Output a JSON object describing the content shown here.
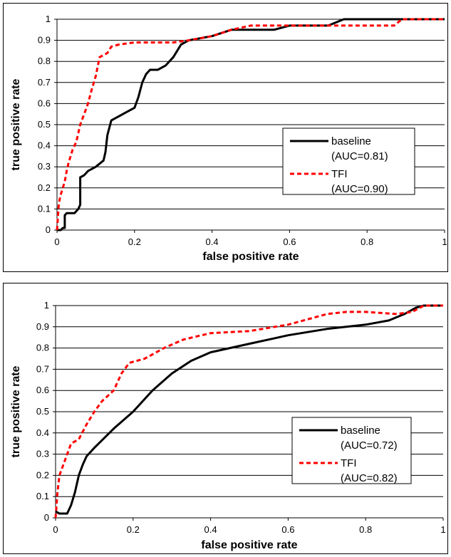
{
  "chart_data": [
    {
      "type": "line",
      "xlabel": "false positive rate",
      "ylabel": "true positive rate",
      "xlim": [
        0,
        1
      ],
      "ylim": [
        0,
        1
      ],
      "xticks": [
        "0",
        "0.2",
        "0.4",
        "0.6",
        "0.8",
        "1"
      ],
      "yticks": [
        "0",
        "0.1",
        "0.2",
        "0.3",
        "0.4",
        "0.5",
        "0.6",
        "0.7",
        "0.8",
        "0.9",
        "1"
      ],
      "grid": "horizontal",
      "legend_position": "right",
      "series": [
        {
          "name": "baseline",
          "annotation": "(AUC=0.81)",
          "color": "#000000",
          "style": "solid",
          "points": [
            [
              0,
              0
            ],
            [
              0.01,
              0
            ],
            [
              0.015,
              0.01
            ],
            [
              0.02,
              0.01
            ],
            [
              0.02,
              0.07
            ],
            [
              0.025,
              0.08
            ],
            [
              0.035,
              0.08
            ],
            [
              0.045,
              0.08
            ],
            [
              0.05,
              0.09
            ],
            [
              0.055,
              0.1
            ],
            [
              0.06,
              0.12
            ],
            [
              0.06,
              0.25
            ],
            [
              0.07,
              0.26
            ],
            [
              0.08,
              0.28
            ],
            [
              0.1,
              0.3
            ],
            [
              0.12,
              0.33
            ],
            [
              0.125,
              0.37
            ],
            [
              0.13,
              0.45
            ],
            [
              0.14,
              0.52
            ],
            [
              0.16,
              0.54
            ],
            [
              0.18,
              0.56
            ],
            [
              0.2,
              0.58
            ],
            [
              0.21,
              0.63
            ],
            [
              0.22,
              0.7
            ],
            [
              0.23,
              0.74
            ],
            [
              0.24,
              0.76
            ],
            [
              0.26,
              0.76
            ],
            [
              0.28,
              0.78
            ],
            [
              0.3,
              0.82
            ],
            [
              0.32,
              0.88
            ],
            [
              0.34,
              0.9
            ],
            [
              0.4,
              0.92
            ],
            [
              0.45,
              0.95
            ],
            [
              0.5,
              0.95
            ],
            [
              0.56,
              0.95
            ],
            [
              0.6,
              0.97
            ],
            [
              0.65,
              0.97
            ],
            [
              0.7,
              0.97
            ],
            [
              0.74,
              1
            ],
            [
              0.8,
              1
            ],
            [
              1,
              1
            ]
          ]
        },
        {
          "name": "TFI",
          "annotation": "(AUC=0.90)",
          "color": "#ff0000",
          "style": "dashed",
          "points": [
            [
              0,
              0
            ],
            [
              0.005,
              0.13
            ],
            [
              0.01,
              0.17
            ],
            [
              0.015,
              0.2
            ],
            [
              0.02,
              0.23
            ],
            [
              0.025,
              0.28
            ],
            [
              0.03,
              0.32
            ],
            [
              0.04,
              0.38
            ],
            [
              0.05,
              0.42
            ],
            [
              0.06,
              0.5
            ],
            [
              0.07,
              0.55
            ],
            [
              0.08,
              0.6
            ],
            [
              0.09,
              0.67
            ],
            [
              0.1,
              0.73
            ],
            [
              0.11,
              0.82
            ],
            [
              0.12,
              0.83
            ],
            [
              0.13,
              0.84
            ],
            [
              0.14,
              0.87
            ],
            [
              0.16,
              0.88
            ],
            [
              0.2,
              0.89
            ],
            [
              0.25,
              0.89
            ],
            [
              0.3,
              0.89
            ],
            [
              0.34,
              0.9
            ],
            [
              0.4,
              0.92
            ],
            [
              0.45,
              0.95
            ],
            [
              0.5,
              0.97
            ],
            [
              0.6,
              0.97
            ],
            [
              0.7,
              0.97
            ],
            [
              0.75,
              0.97
            ],
            [
              0.8,
              0.97
            ],
            [
              0.87,
              0.97
            ],
            [
              0.89,
              1
            ],
            [
              1,
              1
            ]
          ]
        }
      ]
    },
    {
      "type": "line",
      "xlabel": "false positive rate",
      "ylabel": "true positive rate",
      "xlim": [
        0,
        1
      ],
      "ylim": [
        0,
        1
      ],
      "xticks": [
        "0",
        "0.2",
        "0.4",
        "0.6",
        "0.8",
        "1"
      ],
      "yticks": [
        "0",
        "0.1",
        "0.2",
        "0.3",
        "0.4",
        "0.5",
        "0.6",
        "0.7",
        "0.8",
        "0.9",
        "1"
      ],
      "grid": "horizontal",
      "legend_position": "right",
      "series": [
        {
          "name": "baseline",
          "annotation": "(AUC=0.72)",
          "color": "#000000",
          "style": "solid",
          "points": [
            [
              0,
              0.03
            ],
            [
              0.01,
              0.02
            ],
            [
              0.02,
              0.02
            ],
            [
              0.03,
              0.02
            ],
            [
              0.04,
              0.06
            ],
            [
              0.05,
              0.12
            ],
            [
              0.06,
              0.2
            ],
            [
              0.07,
              0.25
            ],
            [
              0.08,
              0.29
            ],
            [
              0.09,
              0.31
            ],
            [
              0.1,
              0.33
            ],
            [
              0.15,
              0.42
            ],
            [
              0.2,
              0.5
            ],
            [
              0.25,
              0.6
            ],
            [
              0.3,
              0.68
            ],
            [
              0.35,
              0.74
            ],
            [
              0.4,
              0.78
            ],
            [
              0.45,
              0.8
            ],
            [
              0.5,
              0.82
            ],
            [
              0.55,
              0.84
            ],
            [
              0.6,
              0.86
            ],
            [
              0.7,
              0.89
            ],
            [
              0.8,
              0.91
            ],
            [
              0.86,
              0.93
            ],
            [
              0.9,
              0.96
            ],
            [
              0.93,
              0.99
            ],
            [
              0.95,
              1
            ],
            [
              1,
              1
            ]
          ]
        },
        {
          "name": "TFI",
          "annotation": "(AUC=0.82)",
          "color": "#ff0000",
          "style": "dashed",
          "points": [
            [
              0,
              0
            ],
            [
              0.005,
              0.12
            ],
            [
              0.01,
              0.2
            ],
            [
              0.02,
              0.25
            ],
            [
              0.03,
              0.3
            ],
            [
              0.04,
              0.35
            ],
            [
              0.06,
              0.37
            ],
            [
              0.08,
              0.44
            ],
            [
              0.1,
              0.5
            ],
            [
              0.12,
              0.55
            ],
            [
              0.15,
              0.6
            ],
            [
              0.17,
              0.68
            ],
            [
              0.19,
              0.73
            ],
            [
              0.23,
              0.75
            ],
            [
              0.28,
              0.8
            ],
            [
              0.33,
              0.84
            ],
            [
              0.4,
              0.87
            ],
            [
              0.5,
              0.88
            ],
            [
              0.6,
              0.91
            ],
            [
              0.7,
              0.96
            ],
            [
              0.75,
              0.97
            ],
            [
              0.8,
              0.97
            ],
            [
              0.88,
              0.96
            ],
            [
              0.92,
              0.97
            ],
            [
              0.95,
              1
            ],
            [
              1,
              1
            ]
          ]
        }
      ]
    }
  ]
}
